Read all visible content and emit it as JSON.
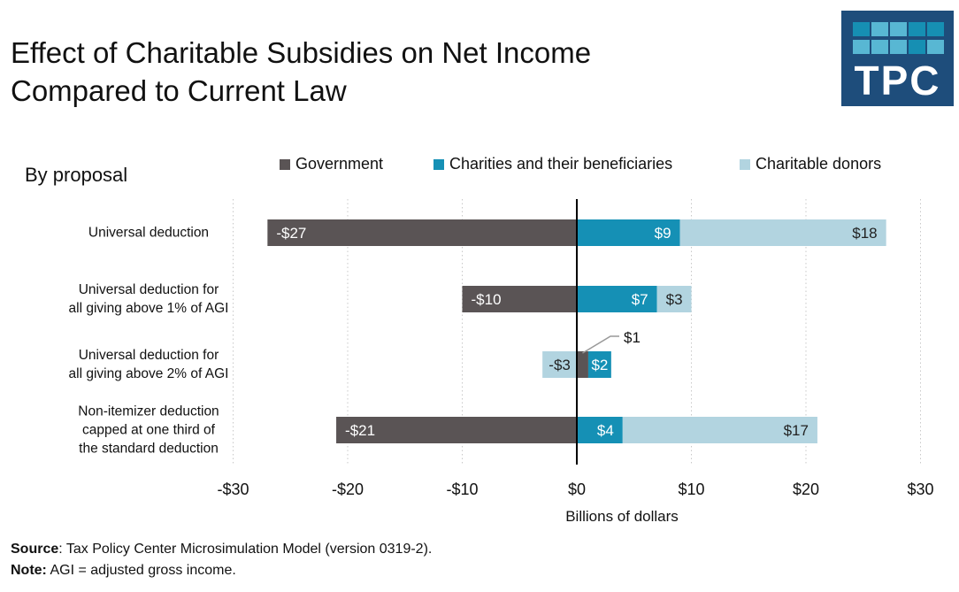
{
  "title_lines": [
    "Effect of Charitable Subsidies on Net Income",
    "Compared to Current Law"
  ],
  "subtitle": "By proposal",
  "logo_text": "TPC",
  "colors": {
    "government": "#5a5455",
    "charities": "#1590b5",
    "donors": "#b2d4e0",
    "logo_bg": "#1e4d7b"
  },
  "chart_data": {
    "type": "bar",
    "orientation": "horizontal-stacked",
    "categories": [
      [
        "Universal deduction"
      ],
      [
        "Universal deduction for",
        "all giving above 1% of AGI"
      ],
      [
        "Universal deduction for",
        "all giving above 2% of AGI"
      ],
      [
        "Non-itemizer deduction",
        "capped at one third of",
        "the standard deduction"
      ]
    ],
    "series": [
      {
        "name": "Government",
        "values": [
          -27,
          -10,
          1,
          -21
        ],
        "labels": [
          "-$27",
          "-$10",
          "$1",
          "-$21"
        ]
      },
      {
        "name": "Charities and their beneficiaries",
        "values": [
          9,
          7,
          2,
          4
        ],
        "labels": [
          "$9",
          "$7",
          "$2",
          "$4"
        ]
      },
      {
        "name": "Charitable donors",
        "values": [
          18,
          3,
          -3,
          17
        ],
        "labels": [
          "$18",
          "$3",
          "-$3",
          "$17"
        ]
      }
    ],
    "xlabel": "Billions of dollars",
    "xlim": [
      -30,
      30
    ],
    "xticks": [
      -30,
      -20,
      -10,
      0,
      10,
      20,
      30
    ],
    "xtick_labels": [
      "-$30",
      "-$20",
      "-$10",
      "$0",
      "$10",
      "$20",
      "$30"
    ],
    "grid": "vertical dotted",
    "legend": "top"
  },
  "footer": {
    "source_label": "Source",
    "source_text": ": Tax Policy Center Microsimulation Model (version 0319-2).",
    "note_label": "Note:",
    "note_text": " AGI = adjusted gross income."
  }
}
